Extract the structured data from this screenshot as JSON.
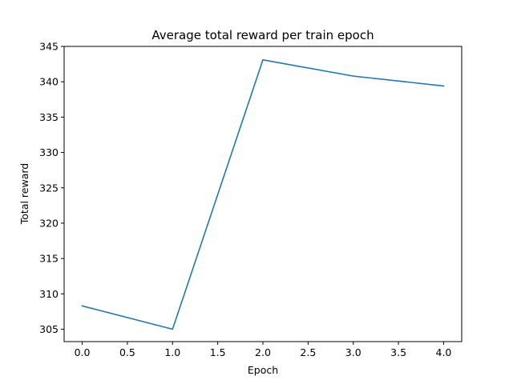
{
  "chart_data": {
    "type": "line",
    "title": "Average total reward per train epoch",
    "xlabel": "Epoch",
    "ylabel": "Total reward",
    "x": [
      0,
      1,
      2,
      3,
      4
    ],
    "series": [
      {
        "values": [
          308.3,
          305.0,
          343.1,
          340.8,
          339.4
        ],
        "color": "#1f77b4"
      }
    ],
    "xlim": [
      -0.2,
      4.2
    ],
    "ylim": [
      303.25,
      345.0
    ],
    "xticks": [
      0.0,
      0.5,
      1.0,
      1.5,
      2.0,
      2.5,
      3.0,
      3.5,
      4.0
    ],
    "xtick_labels": [
      "0.0",
      "0.5",
      "1.0",
      "1.5",
      "2.0",
      "2.5",
      "3.0",
      "3.5",
      "4.0"
    ],
    "yticks": [
      305,
      310,
      315,
      320,
      325,
      330,
      335,
      340,
      345
    ],
    "ytick_labels": [
      "305",
      "310",
      "315",
      "320",
      "325",
      "330",
      "335",
      "340",
      "345"
    ],
    "grid": false,
    "legend": "none"
  }
}
